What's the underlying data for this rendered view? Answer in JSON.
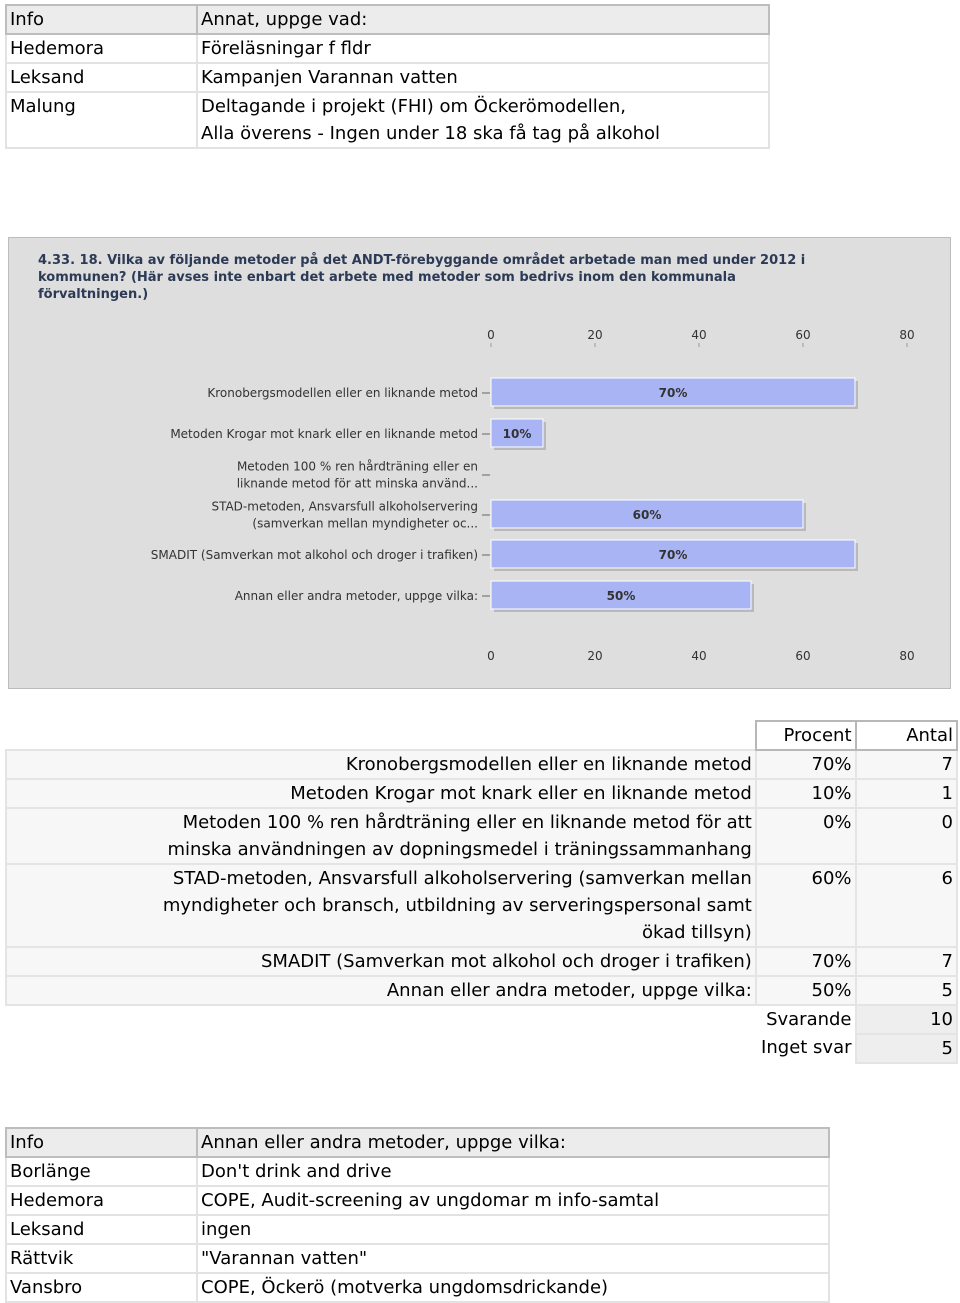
{
  "top_table": {
    "header": [
      "Info",
      "Annat, uppge vad:"
    ],
    "rows": [
      [
        "Hedemora",
        "Föreläsningar f fldr"
      ],
      [
        "Leksand",
        "Kampanjen Varannan vatten"
      ],
      [
        "Malung",
        "Deltagande i projekt (FHI) om Öckerömodellen,\nAlla överens - Ingen under 18 ska få tag på alkohol"
      ]
    ]
  },
  "chart_data": {
    "type": "bar",
    "orientation": "horizontal",
    "title": "4.33. 18. Vilka av följande metoder på det ANDT-förebyggande området arbetade man med under 2012 i\nkommunen? (Här avses inte enbart det arbete med metoder som bedrivs inom den kommunala\nförvaltningen.)",
    "categories": [
      "Kronobergsmodellen eller en liknande metod",
      "Metoden Krogar mot knark eller en liknande metod",
      "Metoden 100 % ren hårdträning eller en\nliknande metod för att minska använd...",
      "STAD-metoden, Ansvarsfull alkoholservering\n(samverkan mellan myndigheter oc...",
      "SMADIT (Samverkan mot alkohol och droger i trafiken)",
      "Annan eller andra metoder, uppge vilka:"
    ],
    "values": [
      70,
      10,
      0,
      60,
      70,
      50
    ],
    "value_labels": [
      "70%",
      "10%",
      null,
      "60%",
      "70%",
      "50%"
    ],
    "xlim": [
      0,
      80
    ],
    "xticks": [
      0,
      20,
      40,
      60,
      80
    ],
    "color": "#a8b4f4"
  },
  "summary_table": {
    "header": [
      "Procent",
      "Antal"
    ],
    "rows": [
      [
        "Kronobergsmodellen eller en liknande metod",
        "70%",
        7
      ],
      [
        "Metoden Krogar mot knark eller en liknande metod",
        "10%",
        1
      ],
      [
        "Metoden 100 % ren hårdträning eller en liknande metod för att\nminska användningen av dopningsmedel i träningssammanhang",
        "0%",
        0
      ],
      [
        "STAD-metoden, Ansvarsfull alkoholservering (samverkan mellan\nmyndigheter och bransch, utbildning av serveringspersonal samt\nökad tillsyn)",
        "60%",
        6
      ],
      [
        "SMADIT (Samverkan mot alkohol och droger i trafiken)",
        "70%",
        7
      ],
      [
        "Annan eller andra metoder, uppge vilka:",
        "50%",
        5
      ]
    ],
    "totals": [
      [
        "Svarande",
        10
      ],
      [
        "Inget svar",
        5
      ]
    ]
  },
  "bottom_table": {
    "header": [
      "Info",
      "Annan eller andra metoder, uppge vilka:"
    ],
    "rows": [
      [
        "Borlänge",
        "Don't drink and drive"
      ],
      [
        "Hedemora",
        "COPE, Audit-screening av ungdomar m info-samtal"
      ],
      [
        "Leksand",
        "ingen"
      ],
      [
        "Rättvik",
        "\"Varannan vatten\""
      ],
      [
        "Vansbro",
        "COPE, Öckerö (motverka ungdomsdrickande)"
      ]
    ]
  }
}
